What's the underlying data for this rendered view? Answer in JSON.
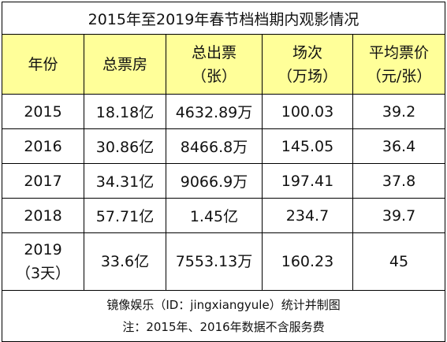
{
  "title": "2015年至2019年春节档档期内观影情况",
  "header": {
    "year": "年份",
    "box_office": "总票房",
    "tickets": [
      "总出票",
      "（张）"
    ],
    "screenings": [
      "场次",
      "（万场）"
    ],
    "avg_price": [
      "平均票价",
      "（元/张）"
    ]
  },
  "rows": [
    {
      "year": [
        "2015"
      ],
      "box_office": "18.18亿",
      "tickets": "4632.89万",
      "screenings": "100.03",
      "avg_price": "39.2"
    },
    {
      "year": [
        "2016"
      ],
      "box_office": "30.86亿",
      "tickets": "8466.8万",
      "screenings": "145.05",
      "avg_price": "36.4"
    },
    {
      "year": [
        "2017"
      ],
      "box_office": "34.31亿",
      "tickets": "9066.9万",
      "screenings": "197.41",
      "avg_price": "37.8"
    },
    {
      "year": [
        "2018"
      ],
      "box_office": "57.71亿",
      "tickets": "1.45亿",
      "screenings": "234.7",
      "avg_price": "39.7"
    },
    {
      "year": [
        "2019",
        "（3天）"
      ],
      "box_office": "33.6亿",
      "tickets": "7553.13万",
      "screenings": "160.23",
      "avg_price": "45"
    }
  ],
  "footer": {
    "source": "镜像娱乐（ID：jingxiangyule）统计并制图",
    "note": "注：2015年、2016年数据不含服务费"
  },
  "colors": {
    "header_bg": "#ffff99",
    "border": "#000000"
  }
}
